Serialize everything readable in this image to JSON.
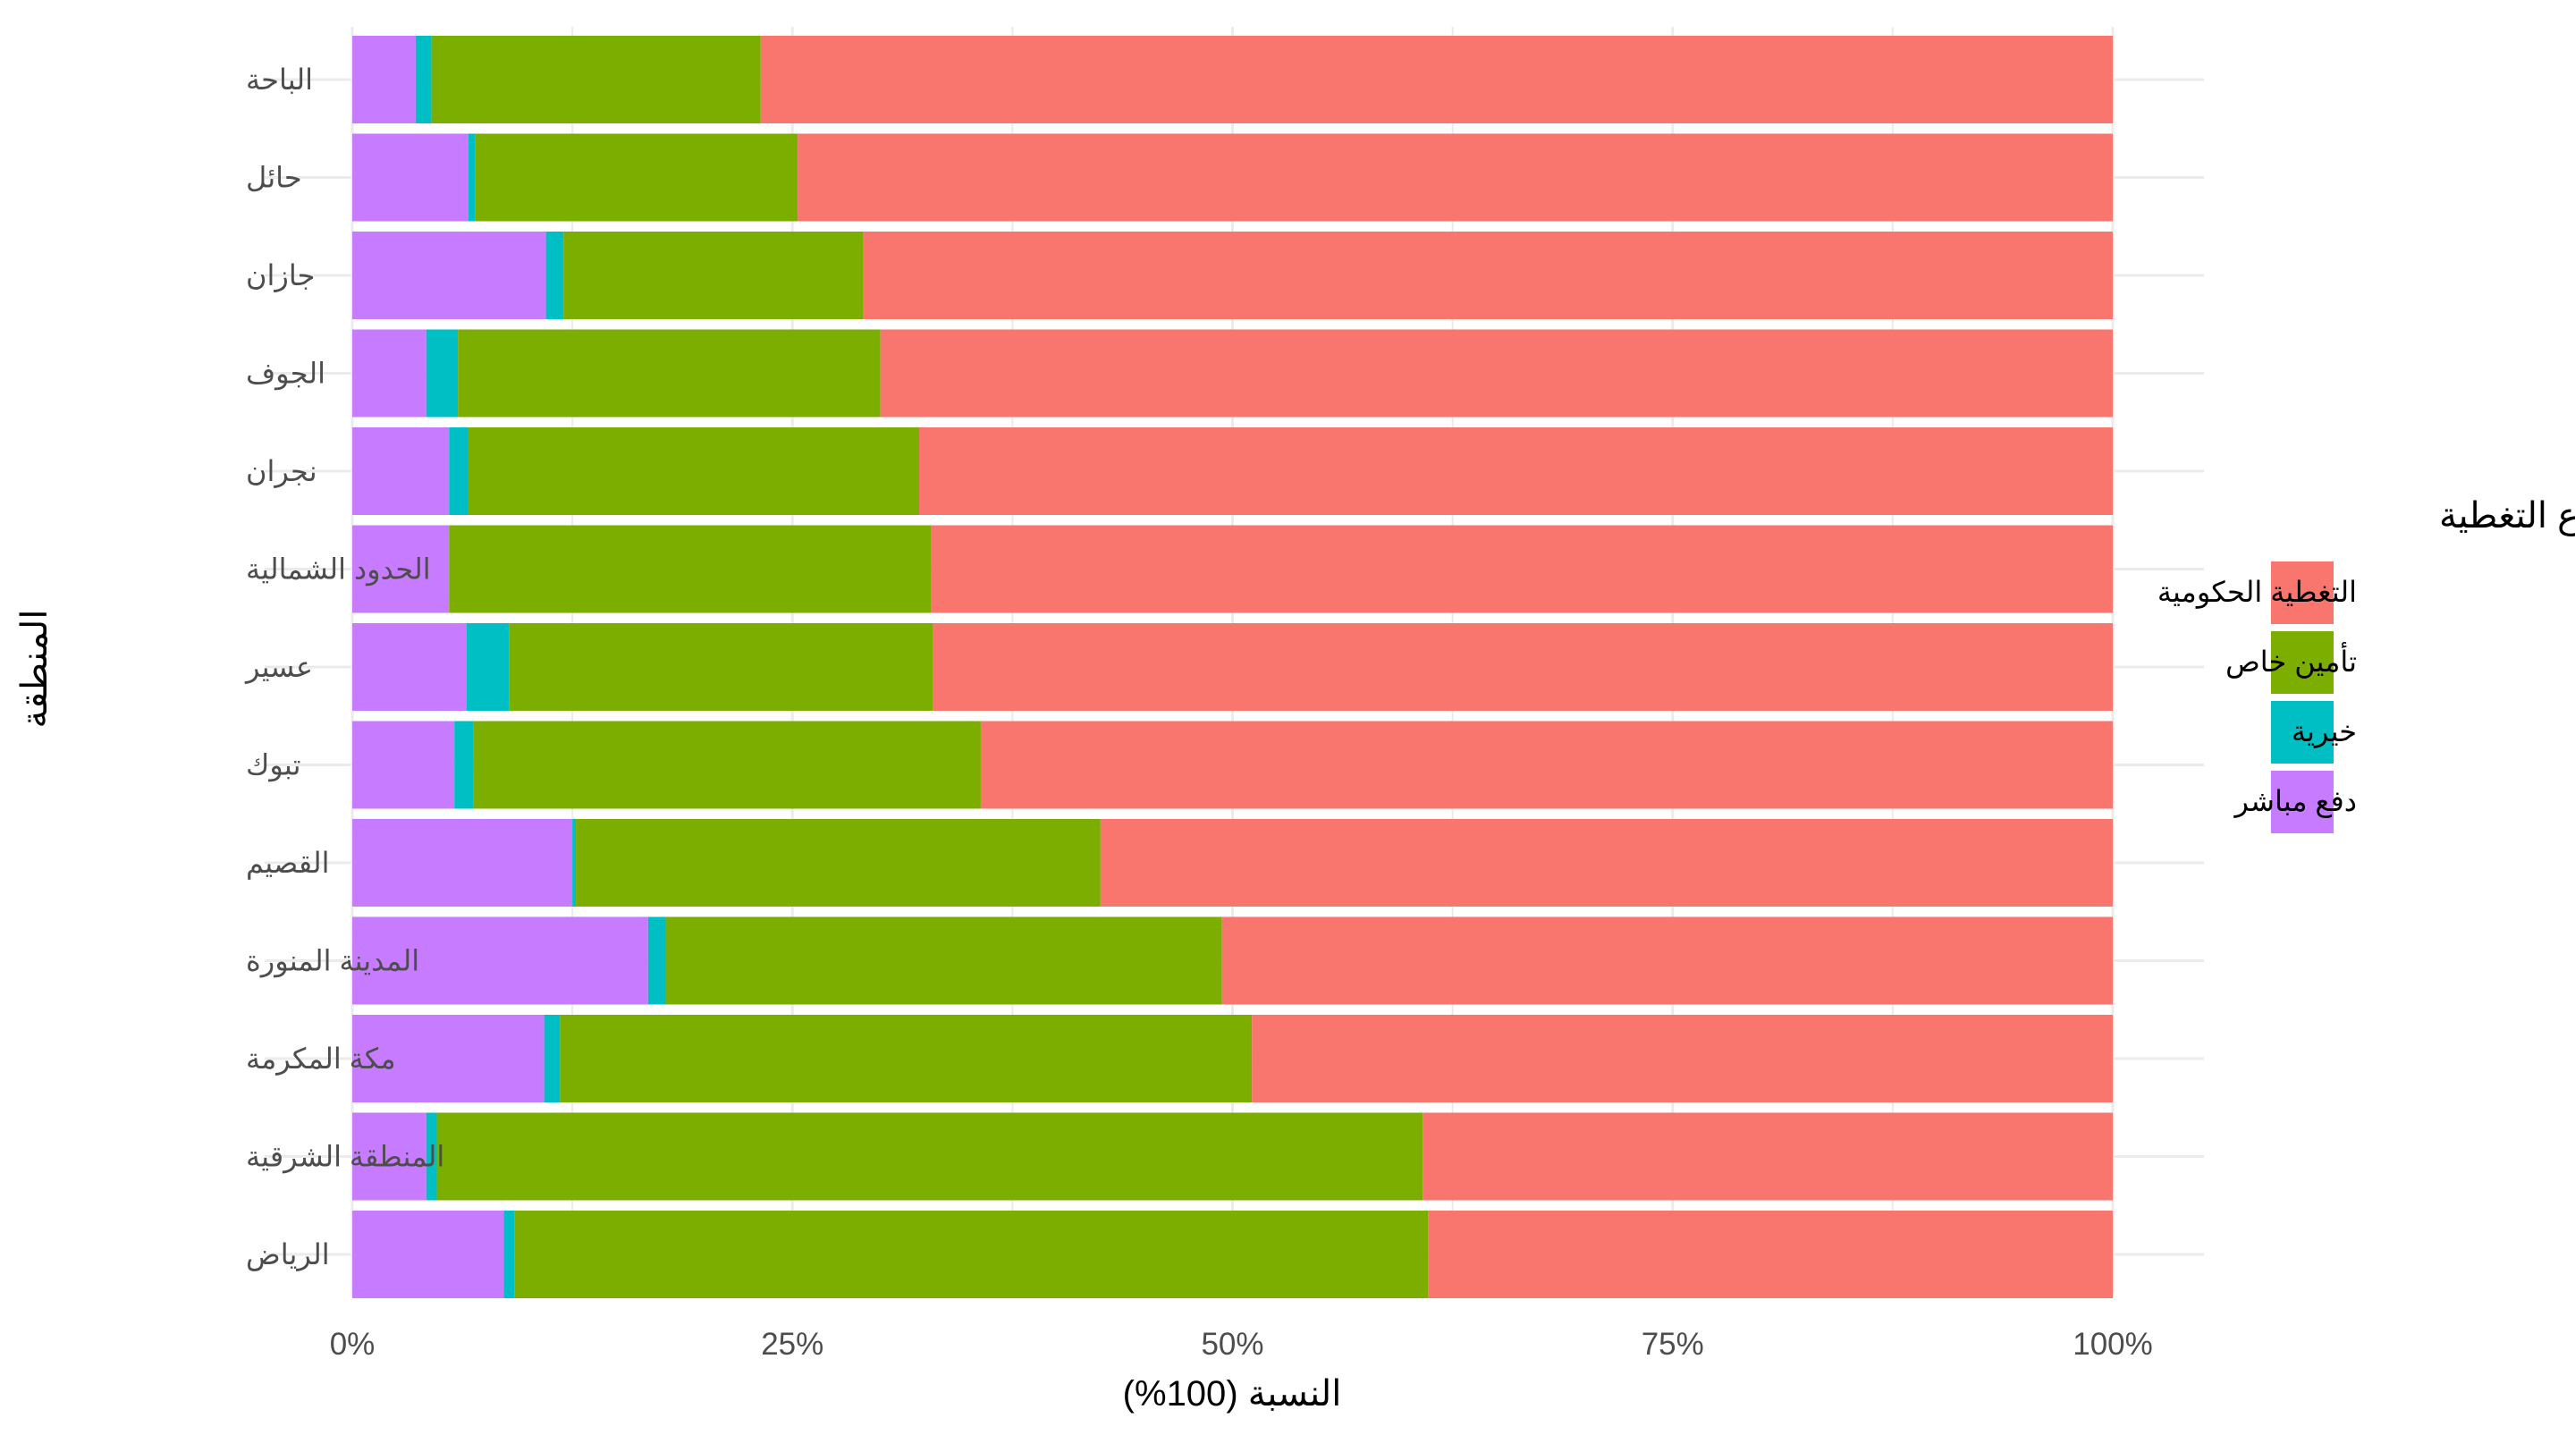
{
  "chart_data": {
    "type": "bar",
    "orientation": "horizontal",
    "stacked": "percent",
    "xlabel": "النسبة (100%)",
    "ylabel": "المنطقة",
    "xlim": [
      0,
      100
    ],
    "x_ticks": [
      0,
      25,
      50,
      75,
      100
    ],
    "x_tick_labels": [
      "0%",
      "25%",
      "50%",
      "75%",
      "100%"
    ],
    "grid": true,
    "legend_position": "right",
    "legend": {
      "title": "نوع التغطية",
      "entries": [
        {
          "label": "التغطية الحكومية",
          "color": "#F8766D"
        },
        {
          "label": "تأمين خاص",
          "color": "#7CAE00"
        },
        {
          "label": "خيرية",
          "color": "#00BFC4"
        },
        {
          "label": "دفع مباشر",
          "color": "#C77CFF"
        }
      ]
    },
    "categories": [
      "الباحة",
      "حائل",
      "جازان",
      "الجوف",
      "نجران",
      "الحدود الشمالية",
      "عسير",
      "تبوك",
      "القصيم",
      "المدينة المنورة",
      "مكة المكرمة",
      "المنطقة الشرقية",
      "الرياض"
    ],
    "series": [
      {
        "name": "دفع مباشر",
        "color": "#C77CFF",
        "values": [
          3.6,
          6.6,
          11.0,
          4.2,
          5.5,
          5.5,
          6.5,
          5.8,
          12.5,
          16.8,
          10.9,
          4.2,
          8.6
        ]
      },
      {
        "name": "خيرية",
        "color": "#00BFC4",
        "values": [
          0.9,
          0.4,
          1.0,
          1.8,
          1.1,
          0.0,
          2.4,
          1.1,
          0.2,
          1.0,
          0.9,
          0.6,
          0.6
        ]
      },
      {
        "name": "تأمين خاص",
        "color": "#7CAE00",
        "values": [
          18.7,
          18.3,
          17.0,
          24.0,
          25.6,
          27.4,
          24.1,
          28.8,
          29.8,
          31.6,
          39.3,
          56.0,
          51.9
        ]
      },
      {
        "name": "التغطية الحكومية",
        "color": "#F8766D",
        "values": [
          76.8,
          74.7,
          71.0,
          70.0,
          67.8,
          67.1,
          67.0,
          64.3,
          57.5,
          50.6,
          48.9,
          39.2,
          38.9
        ]
      }
    ]
  }
}
